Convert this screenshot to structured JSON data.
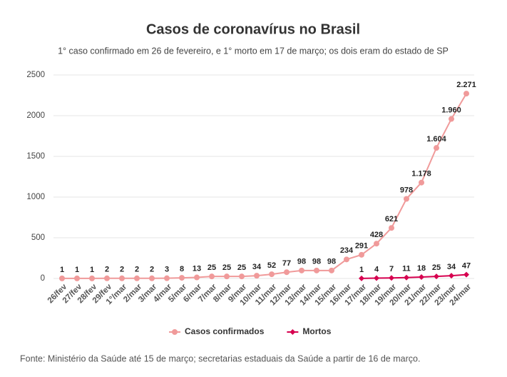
{
  "chart_data": {
    "type": "line",
    "title": "Casos de coronavírus no Brasil",
    "subtitle": "1° caso confirmado em 26 de fevereiro, e 1° morto em 17 de março; os dois eram do estado de SP",
    "source": "Fonte: Ministério da Saúde até 15 de março; secretarias estaduais da Saúde a partir de 16 de março.",
    "categories": [
      "26/fev",
      "27/fev",
      "28/fev",
      "29/fev",
      "1°/mar",
      "2/mar",
      "3/mar",
      "4/mar",
      "5/mar",
      "6/mar",
      "7/mar",
      "8/mar",
      "9/mar",
      "10/mar",
      "11/mar",
      "12/mar",
      "13/mar",
      "14/mar",
      "15/mar",
      "16/mar",
      "17/mar",
      "18/mar",
      "19/mar",
      "20/mar",
      "21/mar",
      "22/mar",
      "23/mar",
      "24/mar"
    ],
    "series": [
      {
        "name": "Casos confirmados",
        "color": "#f09a9a",
        "marker": "circle",
        "values": [
          1,
          1,
          1,
          2,
          2,
          2,
          2,
          3,
          8,
          13,
          25,
          25,
          25,
          34,
          52,
          77,
          98,
          98,
          98,
          234,
          291,
          428,
          621,
          978,
          1178,
          1604,
          1960,
          2271
        ],
        "value_labels": [
          "1",
          "1",
          "1",
          "2",
          "2",
          "2",
          "2",
          "3",
          "8",
          "13",
          "25",
          "25",
          "25",
          "34",
          "52",
          "77",
          "98",
          "98",
          "98",
          "234",
          "291",
          "428",
          "621",
          "978",
          "1.178",
          "1.604",
          "1.960",
          "2.271"
        ]
      },
      {
        "name": "Mortos",
        "color": "#d6004f",
        "marker": "diamond",
        "values": [
          null,
          null,
          null,
          null,
          null,
          null,
          null,
          null,
          null,
          null,
          null,
          null,
          null,
          null,
          null,
          null,
          null,
          null,
          null,
          null,
          1,
          4,
          7,
          11,
          18,
          25,
          34,
          47
        ]
      }
    ],
    "ylim": [
      0,
      2500
    ],
    "yticks": [
      0,
      500,
      1000,
      1500,
      2000,
      2500
    ],
    "grid": true
  }
}
